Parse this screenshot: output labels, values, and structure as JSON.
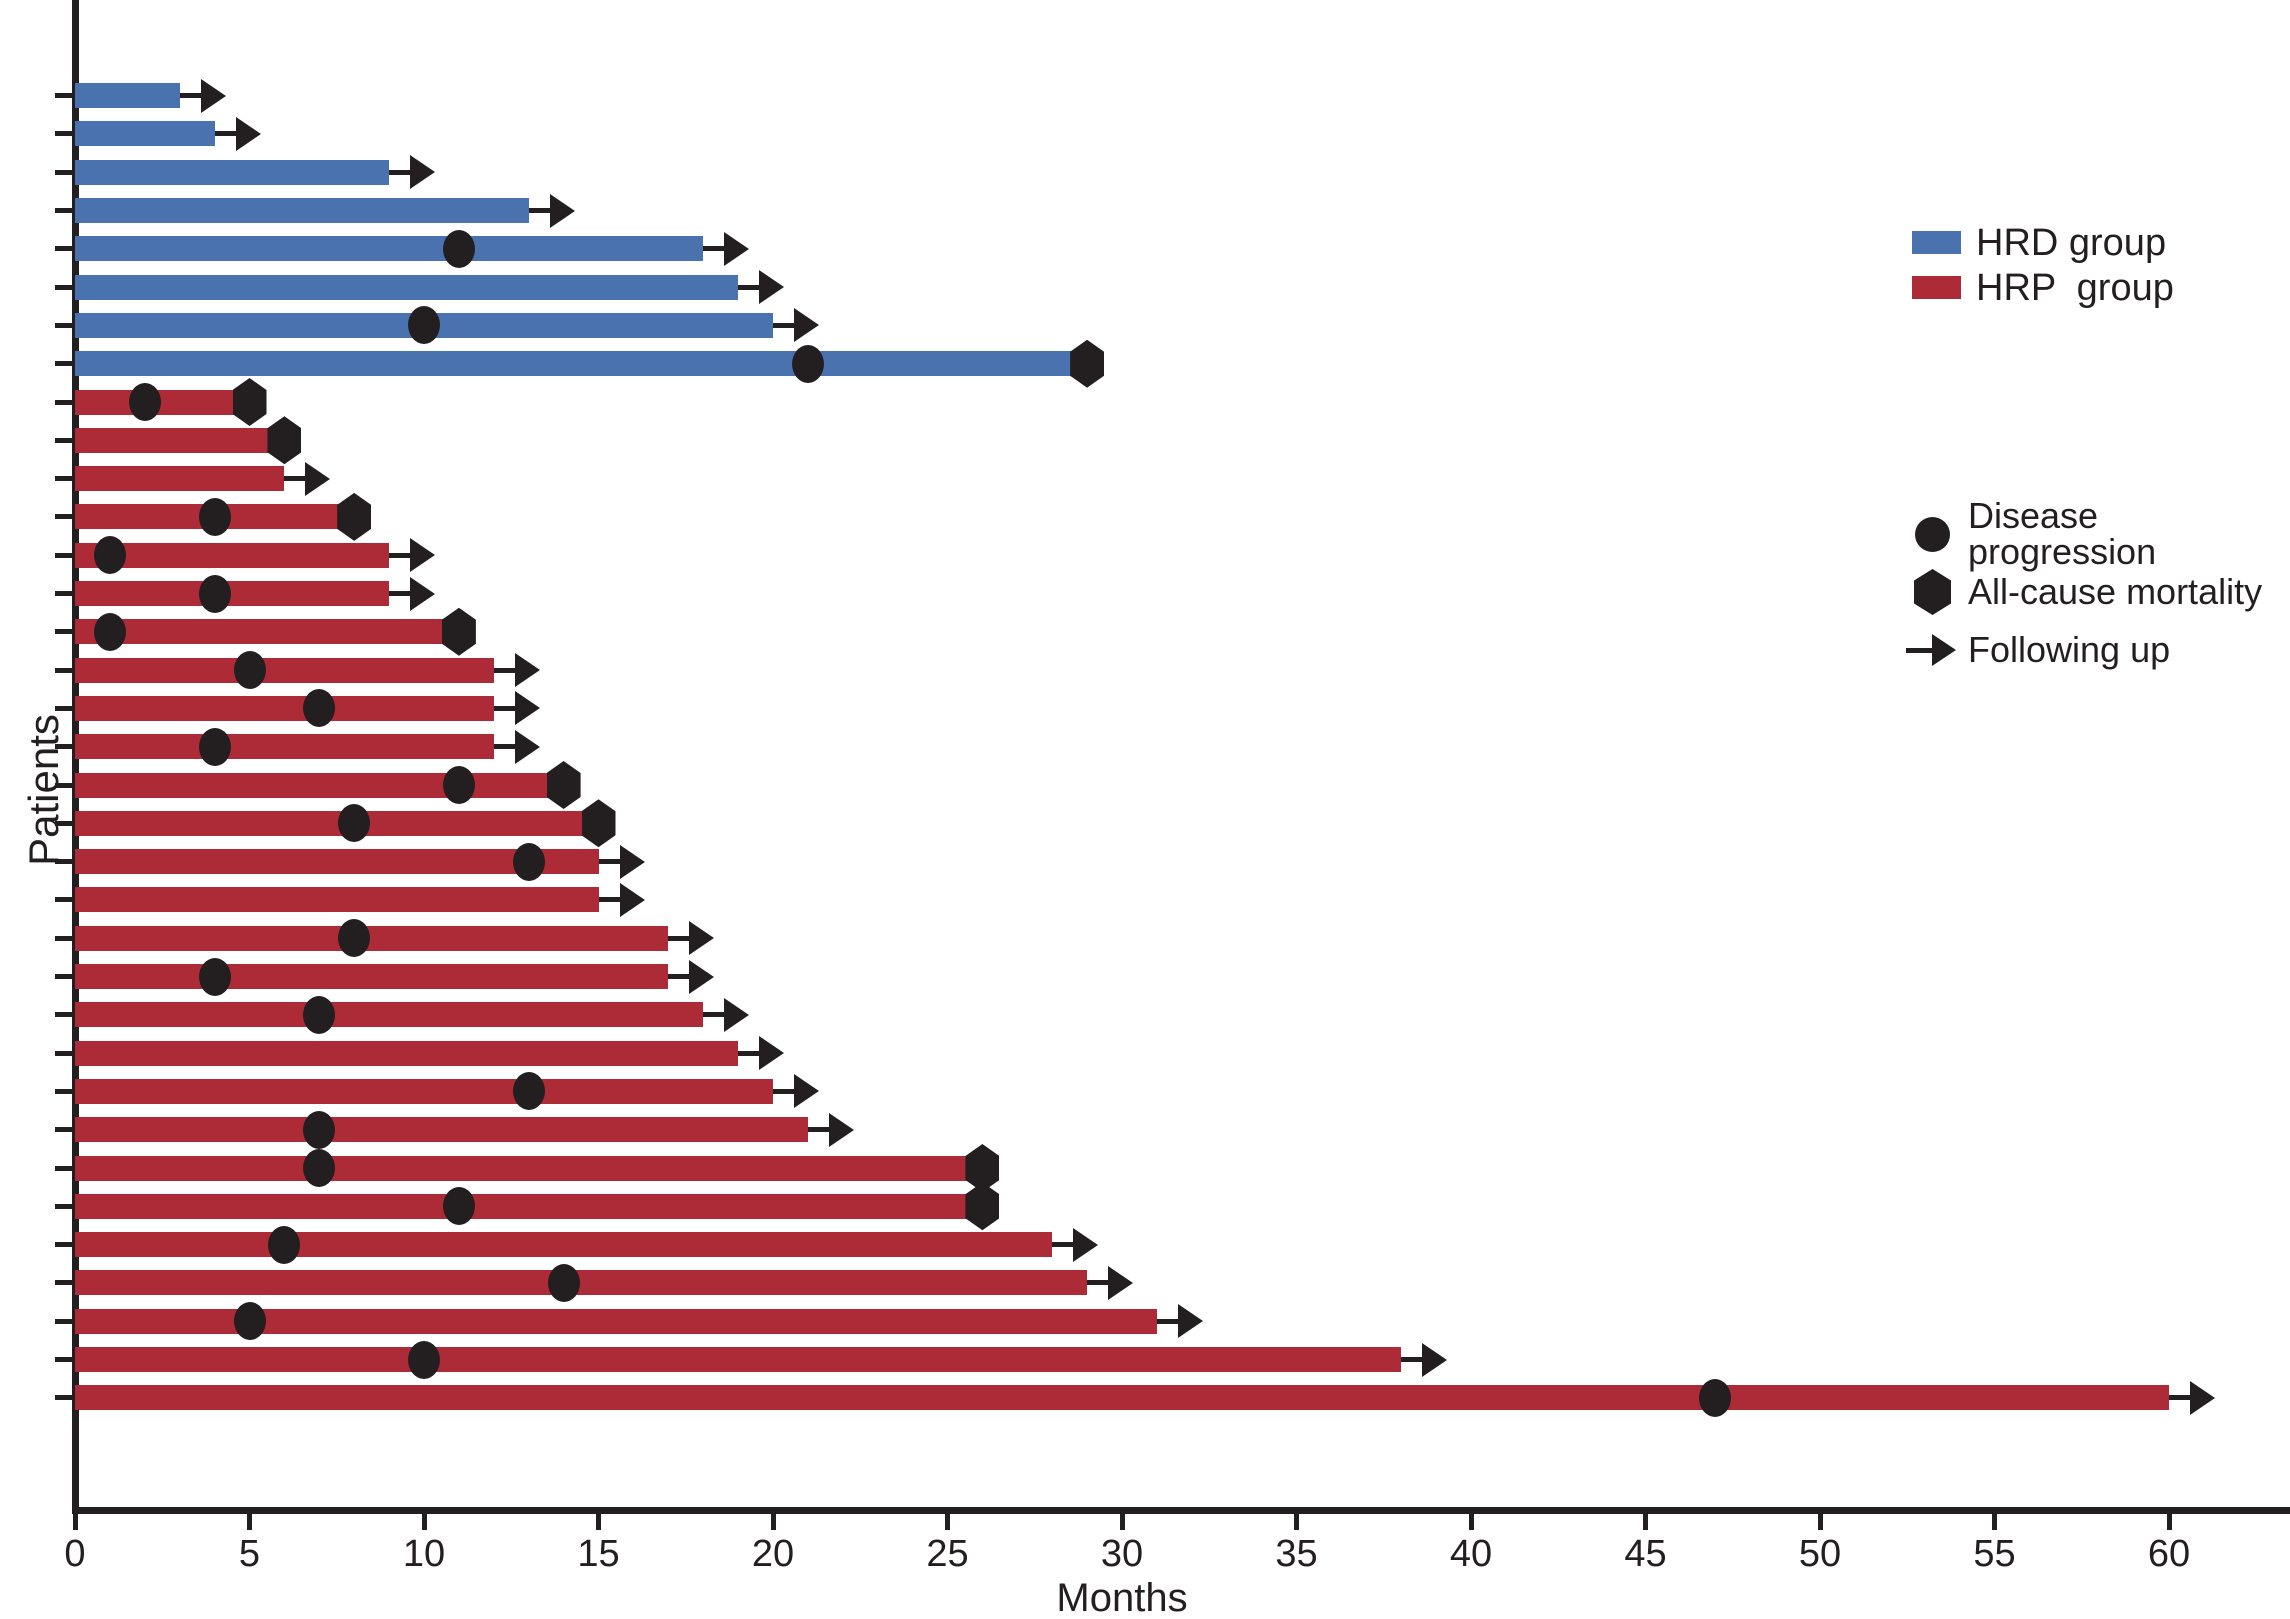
{
  "chart_data": {
    "type": "bar",
    "subtype": "horizontal-swimmer-plot",
    "title": "",
    "xlabel": "Months",
    "ylabel": "Patients",
    "xlim": [
      0,
      62
    ],
    "x_ticks": [
      0,
      5,
      10,
      15,
      20,
      25,
      30,
      35,
      40,
      45,
      50,
      55,
      60
    ],
    "grid": false,
    "legend_position": "right",
    "groups": [
      {
        "name": "HRD group",
        "key": "HRD",
        "color": "#4A72AE"
      },
      {
        "name": "HRP  group",
        "key": "HRP",
        "color": "#AD2A37"
      }
    ],
    "event_legend": [
      {
        "marker": "circle",
        "label": "Disease progression"
      },
      {
        "marker": "hexagon",
        "label": "All-cause mortality"
      },
      {
        "marker": "arrow",
        "label": "Following up"
      }
    ],
    "patients": [
      {
        "group": "HRD",
        "months": 3,
        "end_event": "followup",
        "progression_month": null
      },
      {
        "group": "HRD",
        "months": 4,
        "end_event": "followup",
        "progression_month": null
      },
      {
        "group": "HRD",
        "months": 9,
        "end_event": "followup",
        "progression_month": null
      },
      {
        "group": "HRD",
        "months": 13,
        "end_event": "followup",
        "progression_month": null
      },
      {
        "group": "HRD",
        "months": 18,
        "end_event": "followup",
        "progression_month": 11
      },
      {
        "group": "HRD",
        "months": 19,
        "end_event": "followup",
        "progression_month": null
      },
      {
        "group": "HRD",
        "months": 20,
        "end_event": "followup",
        "progression_month": 10
      },
      {
        "group": "HRD",
        "months": 29,
        "end_event": "mortality",
        "progression_month": 21
      },
      {
        "group": "HRP",
        "months": 5,
        "end_event": "mortality",
        "progression_month": 2
      },
      {
        "group": "HRP",
        "months": 6,
        "end_event": "mortality",
        "progression_month": null
      },
      {
        "group": "HRP",
        "months": 6,
        "end_event": "followup",
        "progression_month": null
      },
      {
        "group": "HRP",
        "months": 8,
        "end_event": "mortality",
        "progression_month": 4
      },
      {
        "group": "HRP",
        "months": 9,
        "end_event": "followup",
        "progression_month": 1
      },
      {
        "group": "HRP",
        "months": 9,
        "end_event": "followup",
        "progression_month": 4
      },
      {
        "group": "HRP",
        "months": 11,
        "end_event": "mortality",
        "progression_month": 1
      },
      {
        "group": "HRP",
        "months": 12,
        "end_event": "followup",
        "progression_month": 5
      },
      {
        "group": "HRP",
        "months": 12,
        "end_event": "followup",
        "progression_month": 7
      },
      {
        "group": "HRP",
        "months": 12,
        "end_event": "followup",
        "progression_month": 4
      },
      {
        "group": "HRP",
        "months": 14,
        "end_event": "mortality",
        "progression_month": 11
      },
      {
        "group": "HRP",
        "months": 15,
        "end_event": "mortality",
        "progression_month": 8
      },
      {
        "group": "HRP",
        "months": 15,
        "end_event": "followup",
        "progression_month": 13
      },
      {
        "group": "HRP",
        "months": 15,
        "end_event": "followup",
        "progression_month": null
      },
      {
        "group": "HRP",
        "months": 17,
        "end_event": "followup",
        "progression_month": 8
      },
      {
        "group": "HRP",
        "months": 17,
        "end_event": "followup",
        "progression_month": 4
      },
      {
        "group": "HRP",
        "months": 18,
        "end_event": "followup",
        "progression_month": 7
      },
      {
        "group": "HRP",
        "months": 19,
        "end_event": "followup",
        "progression_month": null
      },
      {
        "group": "HRP",
        "months": 20,
        "end_event": "followup",
        "progression_month": 13
      },
      {
        "group": "HRP",
        "months": 21,
        "end_event": "followup",
        "progression_month": 7
      },
      {
        "group": "HRP",
        "months": 26,
        "end_event": "mortality",
        "progression_month": 7
      },
      {
        "group": "HRP",
        "months": 26,
        "end_event": "mortality",
        "progression_month": 11
      },
      {
        "group": "HRP",
        "months": 28,
        "end_event": "followup",
        "progression_month": 6
      },
      {
        "group": "HRP",
        "months": 29,
        "end_event": "followup",
        "progression_month": 14
      },
      {
        "group": "HRP",
        "months": 31,
        "end_event": "followup",
        "progression_month": 5
      },
      {
        "group": "HRP",
        "months": 38,
        "end_event": "followup",
        "progression_month": 10
      },
      {
        "group": "HRP",
        "months": 60,
        "end_event": "followup",
        "progression_month": 47
      }
    ],
    "colors": {
      "hrd": "#4A72AE",
      "hrp": "#AD2A37",
      "marker": "#231F20",
      "axis": "#231F20",
      "text": "#231F20"
    }
  }
}
